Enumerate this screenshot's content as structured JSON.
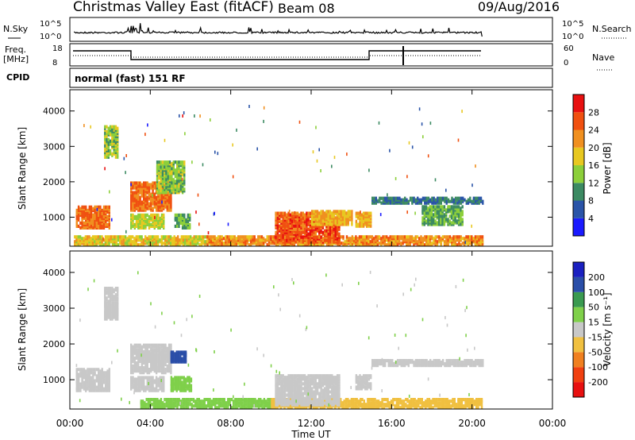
{
  "header": {
    "station": "Christmas Valley East (fitACF)",
    "beam": "Beam 08",
    "date": "09/Aug/2016"
  },
  "top_panels": {
    "nsky_label": "N.Sky",
    "nsearch_label": "N.Search",
    "nsky_ticks": [
      "10^5",
      "10^0"
    ],
    "freq_label_1": "Freq.",
    "freq_label_2": "[MHz]",
    "freq_ticks": [
      "18",
      "8"
    ],
    "nave_label": "Nave",
    "nave_ticks": [
      "60",
      "0"
    ],
    "cpid_label": "CPID",
    "cpid_text": "normal (fast) 151 RF"
  },
  "colors": {
    "power_scale": [
      "#1a1aff",
      "#2a54a8",
      "#3c8a62",
      "#8ccf3a",
      "#e8c820",
      "#f09020",
      "#f05010",
      "#e81010"
    ],
    "velocity_scale": [
      "#e81010",
      "#f04010",
      "#f08020",
      "#f0c040",
      "#c8c8c8",
      "#7fd04a",
      "#3a9a50",
      "#2a4ea8",
      "#1a20c0"
    ]
  },
  "chart_data": [
    {
      "type": "heatmap",
      "name": "power",
      "ylabel": "Slant Range [km]",
      "xlabel": "Time UT",
      "xticks": [
        "00:00",
        "04:00",
        "08:00",
        "12:00",
        "16:00",
        "20:00",
        "00:00"
      ],
      "yticks": [
        "1000",
        "2000",
        "3000",
        "4000"
      ],
      "ylim": [
        180,
        4600
      ],
      "xlim": [
        0,
        24
      ],
      "colorbar_label": "Power [dB]",
      "colorbar_ticks": [
        "28",
        "24",
        "20",
        "16",
        "12",
        "8",
        "4"
      ],
      "colorbar_range": [
        0,
        32
      ],
      "regions": [
        {
          "t0": 0.3,
          "t1": 2.0,
          "r0": 700,
          "r1": 1300,
          "value": 24
        },
        {
          "t0": 1.7,
          "t1": 2.4,
          "r0": 2700,
          "r1": 3600,
          "value": 14
        },
        {
          "t0": 3.0,
          "t1": 5.0,
          "r0": 1200,
          "r1": 2000,
          "value": 24
        },
        {
          "t0": 4.3,
          "t1": 5.7,
          "r0": 1700,
          "r1": 2600,
          "value": 14
        },
        {
          "t0": 3.0,
          "t1": 4.7,
          "r0": 700,
          "r1": 1100,
          "value": 16
        },
        {
          "t0": 5.2,
          "t1": 6.0,
          "r0": 700,
          "r1": 1100,
          "value": 12
        },
        {
          "t0": 0.2,
          "t1": 6.8,
          "r0": 220,
          "r1": 450,
          "value": 18
        },
        {
          "t0": 6.8,
          "t1": 20.5,
          "r0": 220,
          "r1": 450,
          "value": 22
        },
        {
          "t0": 10.2,
          "t1": 13.4,
          "r0": 300,
          "r1": 1150,
          "value": 26
        },
        {
          "t0": 12.0,
          "t1": 14.0,
          "r0": 800,
          "r1": 1200,
          "value": 20
        },
        {
          "t0": 14.2,
          "t1": 15.0,
          "r0": 750,
          "r1": 1150,
          "value": 20
        },
        {
          "t0": 15.0,
          "t1": 20.5,
          "r0": 1400,
          "r1": 1550,
          "value": 8
        },
        {
          "t0": 17.5,
          "t1": 19.5,
          "r0": 800,
          "r1": 1300,
          "value": 12
        }
      ]
    },
    {
      "type": "heatmap",
      "name": "velocity",
      "ylabel": "Slant Range [km]",
      "xlabel": "Time UT",
      "xticks": [
        "00:00",
        "04:00",
        "08:00",
        "12:00",
        "16:00",
        "20:00",
        "00:00"
      ],
      "yticks": [
        "1000",
        "2000",
        "3000",
        "4000"
      ],
      "ylim": [
        180,
        4600
      ],
      "xlim": [
        0,
        24
      ],
      "colorbar_label": "Velocity [m s⁻¹]",
      "colorbar_ticks": [
        "200",
        "100",
        "50",
        "15",
        "-15",
        "-50",
        "-100",
        "-200"
      ],
      "regions": [
        {
          "t0": 0.3,
          "t1": 2.0,
          "r0": 700,
          "r1": 1300,
          "value": 0
        },
        {
          "t0": 1.7,
          "t1": 2.4,
          "r0": 2700,
          "r1": 3600,
          "value": 0
        },
        {
          "t0": 3.0,
          "t1": 5.0,
          "r0": 1200,
          "r1": 2000,
          "value": 0
        },
        {
          "t0": 5.0,
          "t1": 5.8,
          "r0": 1500,
          "r1": 1800,
          "value": 180
        },
        {
          "t0": 3.0,
          "t1": 4.7,
          "r0": 700,
          "r1": 1100,
          "value": 0
        },
        {
          "t0": 5.0,
          "t1": 6.0,
          "r0": 700,
          "r1": 1100,
          "value": 30
        },
        {
          "t0": 3.5,
          "t1": 10.0,
          "r0": 220,
          "r1": 450,
          "value": 25
        },
        {
          "t0": 10.0,
          "t1": 20.5,
          "r0": 220,
          "r1": 450,
          "value": -40
        },
        {
          "t0": 10.2,
          "t1": 13.4,
          "r0": 300,
          "r1": 1150,
          "value": 0
        },
        {
          "t0": 14.2,
          "t1": 15.0,
          "r0": 750,
          "r1": 1150,
          "value": 0
        },
        {
          "t0": 15.0,
          "t1": 20.5,
          "r0": 1400,
          "r1": 1550,
          "value": 0
        }
      ]
    }
  ]
}
